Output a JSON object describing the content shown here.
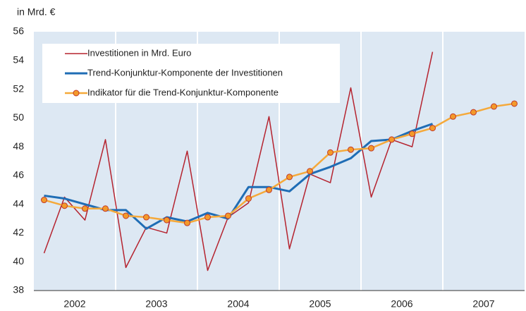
{
  "chart_data": {
    "type": "line",
    "y_label": "in Mrd. €",
    "x": [
      2002.125,
      2002.375,
      2002.625,
      2002.875,
      2003.125,
      2003.375,
      2003.625,
      2003.875,
      2004.125,
      2004.375,
      2004.625,
      2004.875,
      2005.125,
      2005.375,
      2005.625,
      2005.875,
      2006.125,
      2006.375,
      2006.625,
      2006.875,
      2007.125,
      2007.375,
      2007.625,
      2007.875
    ],
    "series": [
      {
        "name": "Investitionen in Mrd. Euro",
        "color": "#b5232f",
        "markers": false,
        "values": [
          40.6,
          44.5,
          42.9,
          48.5,
          39.6,
          42.4,
          42.0,
          47.7,
          39.4,
          43.1,
          44.1,
          50.1,
          40.9,
          46.1,
          45.5,
          52.1,
          44.5,
          48.5,
          48.0,
          54.6,
          null,
          null,
          null,
          null
        ]
      },
      {
        "name": "Trend-Konjunktur-Komponente der Investitionen",
        "color": "#1f6db5",
        "markers": false,
        "values": [
          44.6,
          44.4,
          44.0,
          43.6,
          43.6,
          42.3,
          43.1,
          42.8,
          43.4,
          43.0,
          45.2,
          45.2,
          44.9,
          46.1,
          46.6,
          47.2,
          48.4,
          48.5,
          49.1,
          49.6,
          null,
          null,
          null,
          null
        ]
      },
      {
        "name": "Indikator für die Trend-Konjunktur-Komponente",
        "color": "#f5a93a",
        "markers": true,
        "values": [
          44.3,
          43.9,
          43.7,
          43.7,
          43.2,
          43.1,
          42.9,
          42.7,
          43.1,
          43.2,
          44.4,
          45.0,
          45.9,
          46.3,
          47.6,
          47.8,
          47.9,
          48.5,
          48.9,
          49.3,
          50.1,
          50.4,
          50.8,
          51.0
        ]
      }
    ],
    "xlim": [
      2002,
      2008
    ],
    "xticks": [
      {
        "value": 2002.5,
        "label": "2002"
      },
      {
        "value": 2003.5,
        "label": "2003"
      },
      {
        "value": 2004.5,
        "label": "2004"
      },
      {
        "value": 2005.5,
        "label": "2005"
      },
      {
        "value": 2006.5,
        "label": "2006"
      },
      {
        "value": 2007.5,
        "label": "2007"
      }
    ],
    "xgrid": [
      2003,
      2004,
      2005,
      2006,
      2007
    ],
    "ylim": [
      38,
      56
    ],
    "yticks": [
      38,
      40,
      42,
      44,
      46,
      48,
      50,
      52,
      54,
      56
    ],
    "grid": false,
    "legend": "upper left"
  }
}
